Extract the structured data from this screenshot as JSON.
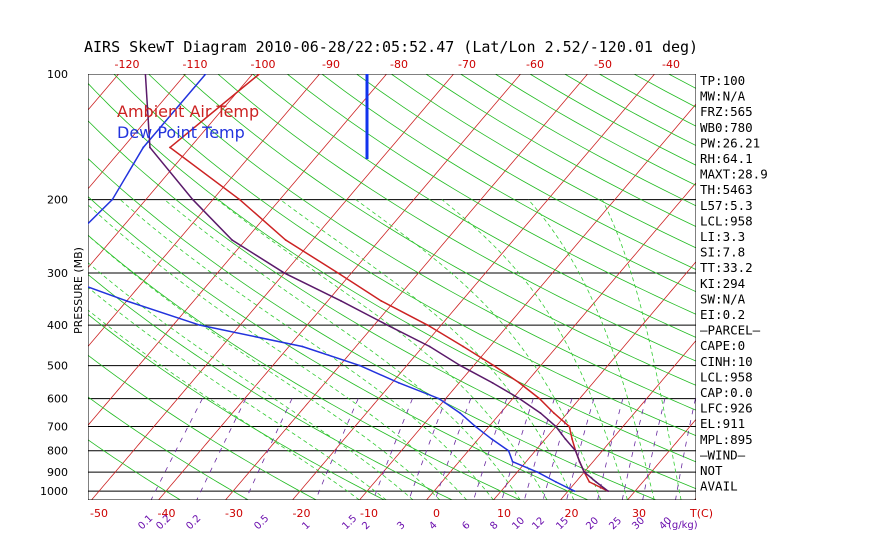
{
  "title": "AIRS SkewT Diagram 2010-06-28/22:05:52.47 (Lat/Lon 2.52/-120.01 deg)",
  "chart_data": {
    "type": "skew-t",
    "ylabel": "PRESSURE (MB)",
    "pressure_levels": [
      100,
      200,
      300,
      400,
      500,
      600,
      700,
      800,
      900,
      1000
    ],
    "pressure_range": [
      100,
      1050
    ],
    "temp_ticks_top": [
      -120,
      -110,
      -100,
      -90,
      -80,
      -70,
      -60,
      -50,
      -40
    ],
    "temp_ticks_bottom": [
      -50,
      -40,
      -30,
      -20,
      -10,
      0,
      10,
      20,
      30
    ],
    "temp_bottom_unit": "T(C)",
    "mixing_ratio_labels": [
      "0.1",
      "0.2",
      "0.2",
      "0.5",
      "1",
      "1.5",
      "2",
      "3",
      "4",
      "6",
      "8",
      "10",
      "12",
      "15",
      "20",
      "25",
      "30",
      "40"
    ],
    "mixing_ratio_unit": "(g/kg)",
    "series": [
      {
        "name": "Ambient Air Temp",
        "color": "#cc2222",
        "points": [
          {
            "p": 100,
            "t": -79
          },
          {
            "p": 150,
            "t": -83
          },
          {
            "p": 200,
            "t": -66
          },
          {
            "p": 250,
            "t": -54
          },
          {
            "p": 300,
            "t": -42
          },
          {
            "p": 350,
            "t": -32
          },
          {
            "p": 400,
            "t": -22
          },
          {
            "p": 450,
            "t": -14
          },
          {
            "p": 500,
            "t": -7
          },
          {
            "p": 550,
            "t": -1
          },
          {
            "p": 600,
            "t": 4
          },
          {
            "p": 650,
            "t": 8
          },
          {
            "p": 700,
            "t": 12
          },
          {
            "p": 750,
            "t": 14
          },
          {
            "p": 800,
            "t": 16
          },
          {
            "p": 850,
            "t": 18
          },
          {
            "p": 900,
            "t": 20
          },
          {
            "p": 950,
            "t": 22
          },
          {
            "p": 1000,
            "t": 26
          }
        ]
      },
      {
        "name": "Dew Point Temp",
        "color": "#2233dd",
        "points": [
          {
            "p": 100,
            "t": -87
          },
          {
            "p": 150,
            "t": -87
          },
          {
            "p": 200,
            "t": -85
          },
          {
            "p": 250,
            "t": -86
          },
          {
            "p": 300,
            "t": -85
          },
          {
            "p": 350,
            "t": -70
          },
          {
            "p": 400,
            "t": -56
          },
          {
            "p": 450,
            "t": -38
          },
          {
            "p": 500,
            "t": -27
          },
          {
            "p": 550,
            "t": -19
          },
          {
            "p": 600,
            "t": -11
          },
          {
            "p": 650,
            "t": -6
          },
          {
            "p": 700,
            "t": -2
          },
          {
            "p": 750,
            "t": 2
          },
          {
            "p": 800,
            "t": 6
          },
          {
            "p": 850,
            "t": 8
          },
          {
            "p": 900,
            "t": 13
          },
          {
            "p": 950,
            "t": 17
          },
          {
            "p": 1000,
            "t": 21
          }
        ]
      },
      {
        "name": "Parcel",
        "color": "#5a1a6a",
        "points": [
          {
            "p": 100,
            "t": -96
          },
          {
            "p": 150,
            "t": -86
          },
          {
            "p": 200,
            "t": -73
          },
          {
            "p": 250,
            "t": -62
          },
          {
            "p": 300,
            "t": -50
          },
          {
            "p": 350,
            "t": -38
          },
          {
            "p": 400,
            "t": -28
          },
          {
            "p": 450,
            "t": -19
          },
          {
            "p": 500,
            "t": -12
          },
          {
            "p": 550,
            "t": -5
          },
          {
            "p": 600,
            "t": 1
          },
          {
            "p": 650,
            "t": 6
          },
          {
            "p": 700,
            "t": 10
          },
          {
            "p": 750,
            "t": 13
          },
          {
            "p": 800,
            "t": 16
          },
          {
            "p": 850,
            "t": 18
          },
          {
            "p": 900,
            "t": 20
          },
          {
            "p": 950,
            "t": 23
          },
          {
            "p": 1000,
            "t": 26
          }
        ]
      }
    ],
    "wind_barb_pressure_top": 100,
    "wind_barb_pressure_bottom": 160,
    "legend": [
      "Ambient Air Temp",
      "Dew Point Temp"
    ],
    "legend_position": "top-left"
  },
  "indices": [
    "TP:100",
    "MW:N/A",
    "FRZ:565",
    "WB0:780",
    "PW:26.21",
    "RH:64.1",
    "MAXT:28.9",
    "TH:5463",
    "L57:5.3",
    "LCL:958",
    "LI:3.3",
    "SI:7.8",
    "TT:33.2",
    "KI:294",
    "SW:N/A",
    "EI:0.2",
    "–PARCEL–",
    "CAPE:0",
    "CINH:10",
    "LCL:958",
    "CAP:0.0",
    "LFC:926",
    "EL:911",
    "MPL:895",
    "–WIND–",
    "NOT",
    "AVAIL"
  ]
}
